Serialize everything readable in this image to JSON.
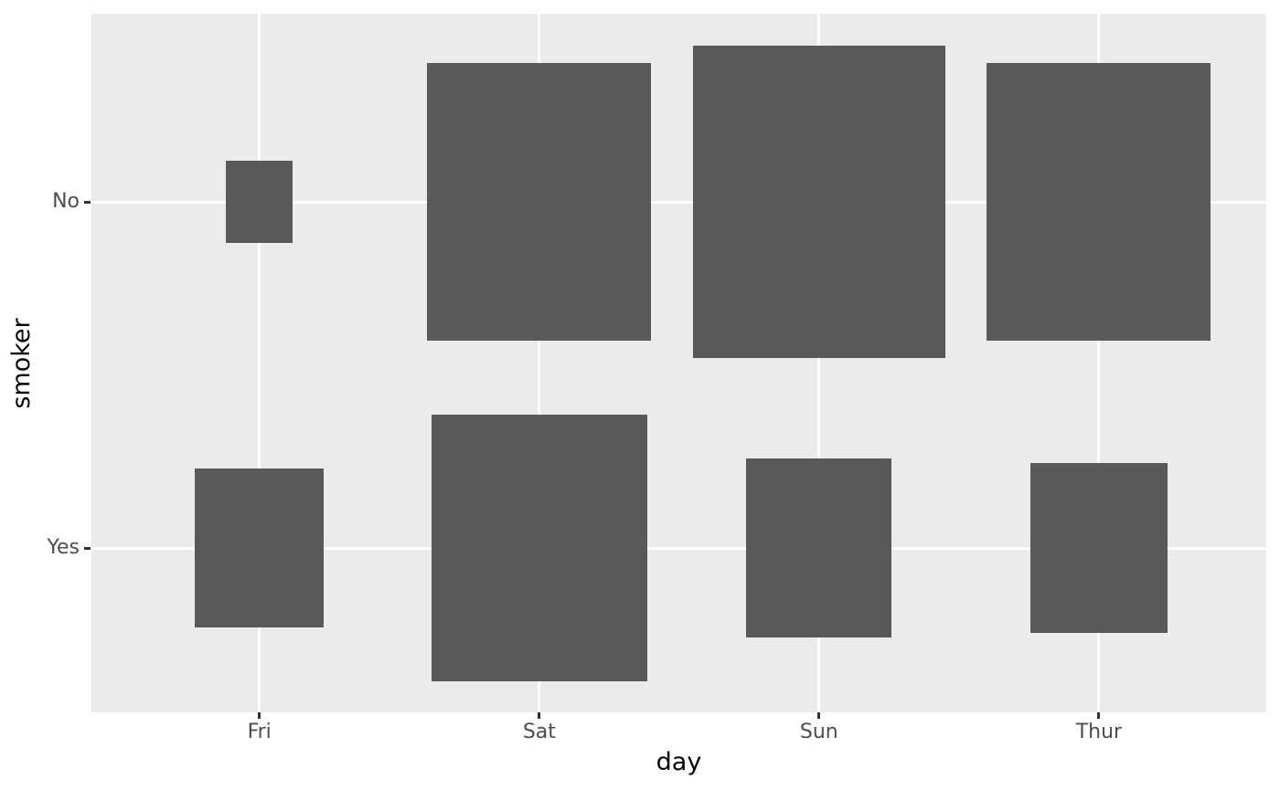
{
  "chart_data": {
    "type": "scatter",
    "variant": "count-squares",
    "title": "",
    "xlabel": "day",
    "ylabel": "smoker",
    "x_categories": [
      "Fri",
      "Sat",
      "Sun",
      "Thur"
    ],
    "y_categories": [
      "No",
      "Yes"
    ],
    "points": [
      {
        "x": "Fri",
        "y": "No",
        "n": 4
      },
      {
        "x": "Fri",
        "y": "Yes",
        "n": 15
      },
      {
        "x": "Sat",
        "y": "No",
        "n": 45
      },
      {
        "x": "Sat",
        "y": "Yes",
        "n": 42
      },
      {
        "x": "Sun",
        "y": "No",
        "n": 57
      },
      {
        "x": "Sun",
        "y": "Yes",
        "n": 19
      },
      {
        "x": "Thur",
        "y": "No",
        "n": 45
      },
      {
        "x": "Thur",
        "y": "Yes",
        "n": 17
      }
    ],
    "size_scale": {
      "encoding": "square-side-in-data-units",
      "transform": "sqrt",
      "max_side_units": 0.9
    },
    "legend_position": "none",
    "grid": "major-only",
    "colors": {
      "marker": "#595959",
      "panel_background": "#EBEBEB",
      "gridline": "#FFFFFF",
      "tick_label": "#4D4D4D",
      "axis_title": "#000000",
      "tick_mark": "#333333",
      "figure_background": "#FFFFFF"
    }
  }
}
